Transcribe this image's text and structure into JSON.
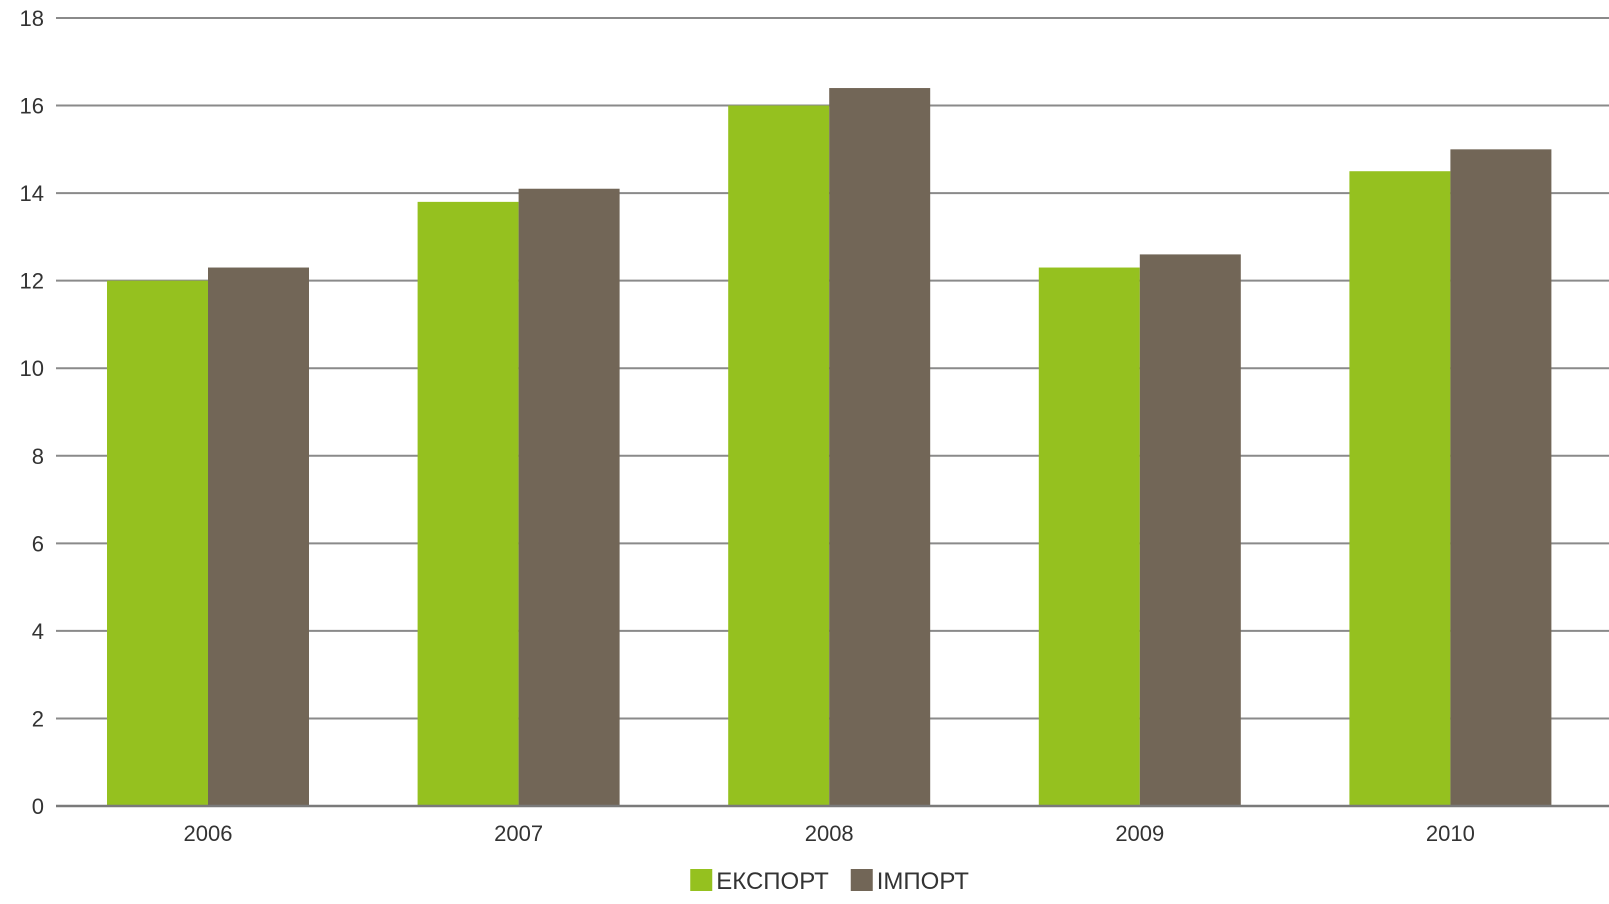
{
  "chart_data": {
    "type": "bar",
    "categories": [
      "2006",
      "2007",
      "2008",
      "2009",
      "2010"
    ],
    "series": [
      {
        "name": "ЕКСПОРТ",
        "color": "#95c11f",
        "values": [
          12.0,
          13.8,
          16.0,
          12.3,
          14.5
        ]
      },
      {
        "name": "ІМПОРТ",
        "color": "#726657",
        "values": [
          12.3,
          14.1,
          16.4,
          12.6,
          15.0
        ]
      }
    ],
    "ylim": [
      0,
      18
    ],
    "yticks": [
      "0",
      "2",
      "4",
      "6",
      "8",
      "10",
      "12",
      "14",
      "16",
      "18"
    ],
    "title": "",
    "xlabel": "",
    "ylabel": "",
    "grid": true,
    "legend_position": "bottom-center"
  }
}
